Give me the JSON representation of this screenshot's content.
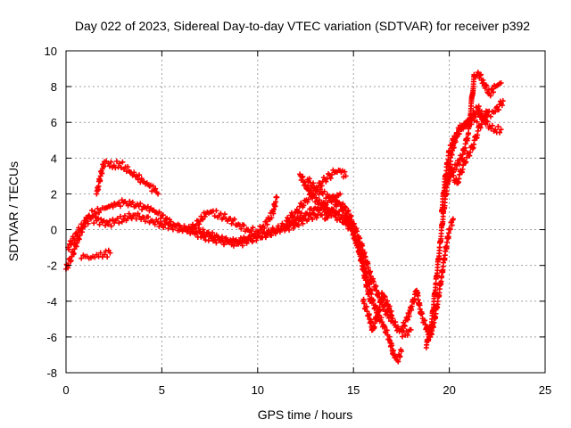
{
  "chart_data": {
    "type": "scatter",
    "title": "Day 022 of 2023, Sidereal Day-to-day VTEC variation (SDTVAR) for receiver p392",
    "xlabel": "GPS time / hours",
    "ylabel": "SDTVAR / TECUs",
    "xlim": [
      0,
      25
    ],
    "ylim": [
      -8,
      10
    ],
    "xticks": [
      0,
      5,
      10,
      15,
      20,
      25
    ],
    "yticks": [
      -8,
      -6,
      -4,
      -2,
      0,
      2,
      4,
      6,
      8,
      10
    ],
    "xtick_labels": [
      "0",
      "5",
      "10",
      "15",
      "20",
      "25"
    ],
    "ytick_labels": [
      "-8",
      "-6",
      "-4",
      "-2",
      "0",
      "2",
      "4",
      "6",
      "8",
      "10"
    ],
    "grid": true,
    "marker": "+",
    "color": "#ff0000",
    "series": [
      {
        "x": [
          0.0,
          0.3,
          0.6,
          0.9,
          1.2,
          1.5,
          1.8,
          2.0,
          2.3,
          2.6,
          3.0,
          3.4,
          3.8,
          4.2,
          4.5,
          4.8,
          5.2,
          5.6,
          6.0,
          6.4,
          6.8,
          7.2,
          7.6,
          8.0,
          8.4,
          8.8,
          9.2,
          9.6,
          10.0,
          10.5,
          11.0,
          11.5,
          12.0,
          12.5,
          13.0,
          13.5,
          14.0,
          14.3
        ],
        "y": [
          -2.2,
          -1.5,
          -0.6,
          0.2,
          0.8,
          1.0,
          1.1,
          1.2,
          1.3,
          1.4,
          1.5,
          1.4,
          1.3,
          1.2,
          1.1,
          0.9,
          0.6,
          0.3,
          0.1,
          0.0,
          -0.2,
          -0.4,
          -0.5,
          -0.6,
          -0.7,
          -0.7,
          -0.6,
          -0.5,
          -0.4,
          -0.3,
          0.0,
          0.3,
          0.6,
          0.9,
          1.2,
          1.5,
          1.8,
          2.0
        ]
      },
      {
        "x": [
          0.1,
          0.4,
          0.7,
          1.0,
          1.3,
          1.6,
          1.9,
          2.2,
          2.6,
          3.0,
          3.5,
          4.0,
          4.5,
          5.0,
          5.5,
          6.0,
          6.5,
          7.0,
          7.5,
          8.0,
          8.5,
          9.0,
          9.5,
          10.0,
          10.5,
          11.0,
          11.5,
          12.0,
          12.5,
          13.0,
          13.5,
          14.0,
          14.5,
          15.0
        ],
        "y": [
          -1.0,
          -0.5,
          0.0,
          0.4,
          0.6,
          0.5,
          0.4,
          0.3,
          0.5,
          0.6,
          0.8,
          0.7,
          0.5,
          0.3,
          0.2,
          0.1,
          0.0,
          -0.1,
          -0.3,
          -0.5,
          -0.7,
          -0.8,
          -0.6,
          -0.4,
          -0.2,
          0.0,
          0.1,
          0.3,
          0.6,
          0.8,
          1.0,
          0.9,
          0.6,
          0.2
        ]
      },
      {
        "x": [
          1.6,
          1.8,
          2.0,
          2.2,
          2.5,
          2.8,
          3.1,
          3.4,
          3.7,
          4.0,
          4.3,
          4.6,
          4.8
        ],
        "y": [
          2.0,
          3.0,
          3.8,
          3.7,
          3.6,
          3.7,
          3.5,
          3.2,
          3.0,
          2.7,
          2.5,
          2.2,
          2.0
        ]
      },
      {
        "x": [
          0.8,
          1.0,
          1.2,
          1.4,
          1.6,
          1.8,
          2.0,
          2.3
        ],
        "y": [
          -1.6,
          -1.5,
          -1.6,
          -1.5,
          -1.4,
          -1.3,
          -1.4,
          -1.3
        ]
      },
      {
        "x": [
          6.5,
          7.0,
          7.3,
          7.6,
          8.0,
          8.5,
          9.0,
          9.5,
          10.0,
          10.3,
          10.6,
          10.8,
          11.0
        ],
        "y": [
          0.0,
          0.5,
          0.9,
          1.0,
          0.8,
          0.6,
          0.3,
          0.0,
          -0.1,
          0.2,
          0.6,
          1.0,
          1.8
        ]
      },
      {
        "x": [
          12.2,
          12.5,
          12.8,
          13.1,
          13.4,
          13.7,
          14.0,
          14.3,
          14.6,
          14.9,
          15.2,
          15.5,
          15.8,
          16.0,
          16.3,
          16.6,
          16.9,
          17.1,
          17.3,
          17.5
        ],
        "y": [
          3.1,
          2.5,
          2.0,
          1.6,
          1.3,
          1.0,
          0.8,
          0.6,
          0.3,
          0.0,
          -0.8,
          -1.8,
          -3.0,
          -4.0,
          -4.8,
          -5.4,
          -6.2,
          -7.0,
          -7.3,
          -6.8
        ]
      },
      {
        "x": [
          12.6,
          13.0,
          13.4,
          13.8,
          14.1,
          14.4,
          14.7,
          15.0,
          15.3,
          15.6,
          15.9,
          16.2,
          16.5,
          16.8,
          17.1,
          17.4,
          17.7,
          18.0
        ],
        "y": [
          2.8,
          2.3,
          2.0,
          1.8,
          1.6,
          1.4,
          1.0,
          0.3,
          -0.5,
          -1.5,
          -2.6,
          -3.4,
          -4.2,
          -4.8,
          -5.2,
          -5.7,
          -5.9,
          -5.6
        ]
      },
      {
        "x": [
          11.5,
          12.0,
          12.5,
          13.0,
          13.5,
          14.0,
          14.3,
          14.6
        ],
        "y": [
          0.5,
          1.0,
          1.6,
          2.2,
          2.8,
          3.2,
          3.3,
          3.0
        ]
      },
      {
        "x": [
          13.5,
          13.8,
          14.1,
          14.4,
          14.7,
          15.0,
          15.3,
          15.5,
          15.7,
          15.9
        ],
        "y": [
          0.6,
          1.0,
          1.3,
          1.1,
          0.6,
          -0.2,
          -1.2,
          -2.2,
          -3.2,
          -4.0
        ]
      },
      {
        "x": [
          15.5,
          15.8,
          16.0,
          16.3,
          16.5,
          16.8,
          17.0
        ],
        "y": [
          -4.0,
          -4.8,
          -5.6,
          -4.6,
          -3.6,
          -4.2,
          -4.8
        ]
      },
      {
        "x": [
          17.5,
          17.8,
          18.0,
          18.3,
          18.5,
          18.8,
          19.0,
          19.2,
          19.4,
          19.6,
          19.8,
          20.0,
          20.2
        ],
        "y": [
          -5.6,
          -5.0,
          -4.4,
          -3.4,
          -4.6,
          -5.5,
          -6.0,
          -5.2,
          -4.0,
          -2.6,
          -1.2,
          0.0,
          0.6
        ]
      },
      {
        "x": [
          18.8,
          19.1,
          19.3,
          19.5,
          19.7,
          19.9,
          20.1,
          20.3,
          20.5,
          20.7,
          21.0,
          21.3,
          21.6,
          22.0,
          22.4,
          22.8
        ],
        "y": [
          -6.6,
          -5.0,
          -3.0,
          -1.0,
          1.0,
          2.6,
          4.2,
          5.0,
          5.6,
          5.8,
          6.0,
          6.1,
          6.3,
          6.4,
          6.6,
          7.2
        ]
      },
      {
        "x": [
          19.6,
          19.8,
          20.0,
          20.2,
          20.4,
          20.6,
          20.9,
          21.2,
          21.5,
          21.8,
          22.1,
          22.4,
          22.7
        ],
        "y": [
          1.0,
          3.0,
          4.4,
          5.0,
          5.2,
          5.6,
          5.9,
          6.4,
          6.8,
          6.2,
          5.8,
          5.6,
          5.6
        ]
      },
      {
        "x": [
          19.8,
          20.1,
          20.4,
          20.7,
          21.0,
          21.3,
          21.5,
          21.8,
          22.1,
          22.4,
          22.7
        ],
        "y": [
          2.4,
          3.2,
          3.6,
          4.2,
          5.4,
          8.6,
          8.8,
          8.2,
          7.6,
          8.0,
          8.2
        ]
      },
      {
        "x": [
          20.0,
          20.4,
          20.8,
          21.2,
          21.6,
          22.0
        ],
        "y": [
          3.4,
          2.6,
          3.8,
          4.6,
          5.8,
          6.6
        ]
      }
    ]
  }
}
